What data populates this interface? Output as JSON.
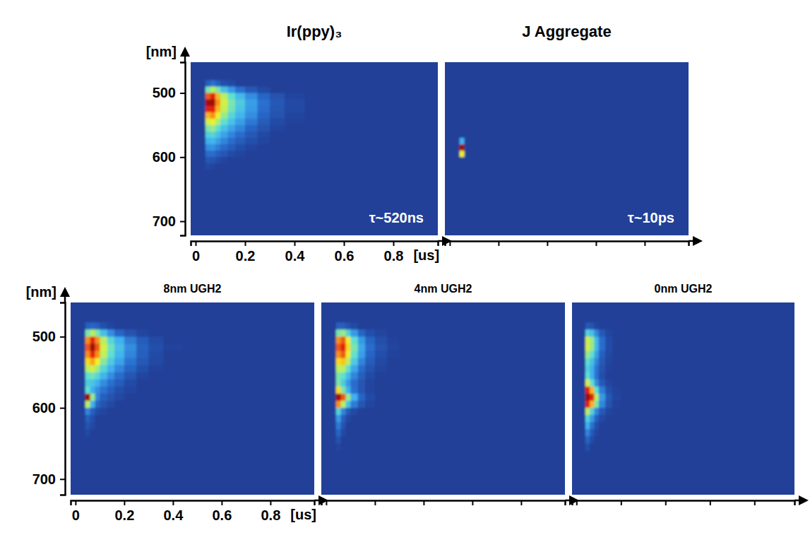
{
  "chart_data": [
    {
      "type": "heatmap",
      "title": "Ir(ppy)₃",
      "x_label": "[us]",
      "y_label": "[nm]",
      "annotations": [
        "τ~520ns"
      ],
      "xlim": [
        -0.02,
        0.98
      ],
      "ylim": [
        452,
        722
      ],
      "xticks": [
        0,
        0.2,
        0.4,
        0.6,
        0.8
      ],
      "yticks": [
        500,
        600,
        700
      ],
      "zlim": [
        0,
        1
      ],
      "x_bins": [
        0.04,
        0.06,
        0.08,
        0.1,
        0.13,
        0.16,
        0.2,
        0.25,
        0.3,
        0.36,
        0.44
      ],
      "y_bins": [
        480,
        490,
        500,
        510,
        520,
        530,
        540,
        550,
        560,
        570,
        580,
        590,
        600,
        610,
        620,
        630,
        640,
        650,
        660
      ],
      "values": [
        [
          0.1,
          0.15,
          0.1,
          0.05,
          0.03,
          0,
          0,
          0,
          0,
          0
        ],
        [
          0.5,
          0.6,
          0.5,
          0.35,
          0.25,
          0.15,
          0.08,
          0.03,
          0,
          0
        ],
        [
          0.9,
          0.95,
          0.8,
          0.6,
          0.45,
          0.33,
          0.22,
          0.12,
          0.06,
          0.02
        ],
        [
          1.0,
          1.0,
          0.85,
          0.65,
          0.5,
          0.38,
          0.26,
          0.15,
          0.08,
          0.03
        ],
        [
          0.95,
          0.95,
          0.8,
          0.62,
          0.48,
          0.36,
          0.25,
          0.14,
          0.07,
          0.03
        ],
        [
          0.8,
          0.85,
          0.7,
          0.55,
          0.42,
          0.32,
          0.22,
          0.12,
          0.06,
          0.02
        ],
        [
          0.65,
          0.7,
          0.58,
          0.45,
          0.35,
          0.26,
          0.17,
          0.09,
          0.04,
          0.01
        ],
        [
          0.5,
          0.55,
          0.45,
          0.35,
          0.27,
          0.2,
          0.12,
          0.06,
          0.02,
          0
        ],
        [
          0.4,
          0.42,
          0.35,
          0.27,
          0.2,
          0.14,
          0.08,
          0.03,
          0,
          0
        ],
        [
          0.3,
          0.32,
          0.26,
          0.2,
          0.14,
          0.09,
          0.05,
          0.02,
          0,
          0
        ],
        [
          0.22,
          0.23,
          0.18,
          0.13,
          0.09,
          0.05,
          0.02,
          0,
          0,
          0
        ],
        [
          0.14,
          0.14,
          0.1,
          0.07,
          0.04,
          0.02,
          0,
          0,
          0,
          0
        ],
        [
          0.07,
          0.06,
          0.04,
          0.02,
          0,
          0,
          0,
          0,
          0,
          0
        ],
        [
          0.03,
          0.02,
          0,
          0,
          0,
          0,
          0,
          0,
          0,
          0
        ],
        [
          0,
          0,
          0,
          0,
          0,
          0,
          0,
          0,
          0,
          0
        ],
        [
          0,
          0,
          0,
          0,
          0,
          0,
          0,
          0,
          0,
          0
        ],
        [
          0,
          0,
          0,
          0,
          0,
          0,
          0,
          0,
          0,
          0
        ],
        [
          0,
          0,
          0,
          0,
          0,
          0,
          0,
          0,
          0,
          0
        ]
      ]
    },
    {
      "type": "heatmap",
      "title": "J Aggregate",
      "annotations": [
        "τ~10ps"
      ],
      "tick_labels": false,
      "xlim": [
        -0.02,
        0.98
      ],
      "ylim": [
        452,
        722
      ],
      "xticks": [
        0,
        0.2,
        0.4,
        0.6,
        0.8
      ],
      "zlim": [
        0,
        1
      ],
      "x_bins": [
        0.04,
        0.06,
        0.08,
        0.1,
        0.13,
        0.16,
        0.2,
        0.25,
        0.3,
        0.36,
        0.44
      ],
      "y_bins": [
        480,
        490,
        500,
        510,
        520,
        530,
        540,
        550,
        560,
        570,
        580,
        590,
        600,
        610,
        620,
        630,
        640,
        650,
        660
      ],
      "values": [
        [
          0,
          0,
          0,
          0,
          0,
          0,
          0,
          0,
          0,
          0
        ],
        [
          0,
          0,
          0,
          0,
          0,
          0,
          0,
          0,
          0,
          0
        ],
        [
          0,
          0,
          0,
          0,
          0,
          0,
          0,
          0,
          0,
          0
        ],
        [
          0,
          0,
          0,
          0,
          0,
          0,
          0,
          0,
          0,
          0
        ],
        [
          0,
          0,
          0,
          0,
          0,
          0,
          0,
          0,
          0,
          0
        ],
        [
          0,
          0,
          0,
          0,
          0,
          0,
          0,
          0,
          0,
          0
        ],
        [
          0,
          0,
          0,
          0,
          0,
          0,
          0,
          0,
          0,
          0
        ],
        [
          0,
          0,
          0,
          0,
          0,
          0,
          0,
          0,
          0,
          0
        ],
        [
          0,
          0,
          0,
          0,
          0,
          0,
          0,
          0,
          0,
          0
        ],
        [
          0.3,
          0,
          0,
          0,
          0,
          0,
          0,
          0,
          0,
          0
        ],
        [
          1.0,
          0,
          0,
          0,
          0,
          0,
          0,
          0,
          0,
          0
        ],
        [
          0.7,
          0,
          0,
          0,
          0,
          0,
          0,
          0,
          0,
          0
        ],
        [
          0,
          0,
          0,
          0,
          0,
          0,
          0,
          0,
          0,
          0
        ],
        [
          0,
          0,
          0,
          0,
          0,
          0,
          0,
          0,
          0,
          0
        ],
        [
          0,
          0,
          0,
          0,
          0,
          0,
          0,
          0,
          0,
          0
        ],
        [
          0,
          0,
          0,
          0,
          0,
          0,
          0,
          0,
          0,
          0
        ],
        [
          0,
          0,
          0,
          0,
          0,
          0,
          0,
          0,
          0,
          0
        ],
        [
          0,
          0,
          0,
          0,
          0,
          0,
          0,
          0,
          0,
          0
        ]
      ]
    },
    {
      "type": "heatmap",
      "title": "8nm UGH2",
      "x_label": "[us]",
      "y_label": "[nm]",
      "xlim": [
        -0.02,
        0.98
      ],
      "ylim": [
        452,
        722
      ],
      "xticks": [
        0,
        0.2,
        0.4,
        0.6,
        0.8
      ],
      "yticks": [
        500,
        600,
        700
      ],
      "zlim": [
        0,
        1
      ],
      "x_bins": [
        0.04,
        0.06,
        0.08,
        0.1,
        0.13,
        0.16,
        0.2,
        0.25,
        0.3,
        0.36,
        0.44
      ],
      "y_bins": [
        480,
        490,
        500,
        510,
        520,
        530,
        540,
        550,
        560,
        570,
        580,
        590,
        600,
        610,
        620,
        630,
        640,
        650,
        660
      ],
      "values": [
        [
          0.1,
          0.12,
          0.1,
          0.05,
          0.02,
          0,
          0,
          0,
          0,
          0
        ],
        [
          0.5,
          0.6,
          0.5,
          0.35,
          0.22,
          0.12,
          0.06,
          0.02,
          0,
          0
        ],
        [
          0.85,
          0.95,
          0.85,
          0.6,
          0.42,
          0.3,
          0.18,
          0.09,
          0.04,
          0
        ],
        [
          0.9,
          1.0,
          0.9,
          0.65,
          0.48,
          0.34,
          0.22,
          0.11,
          0.05,
          0.01
        ],
        [
          0.85,
          0.95,
          0.85,
          0.62,
          0.45,
          0.32,
          0.2,
          0.1,
          0.04,
          0
        ],
        [
          0.75,
          0.82,
          0.72,
          0.52,
          0.38,
          0.27,
          0.16,
          0.08,
          0.03,
          0
        ],
        [
          0.6,
          0.65,
          0.56,
          0.42,
          0.3,
          0.2,
          0.12,
          0.05,
          0.01,
          0
        ],
        [
          0.45,
          0.48,
          0.42,
          0.32,
          0.22,
          0.14,
          0.07,
          0.02,
          0,
          0
        ],
        [
          0.38,
          0.36,
          0.3,
          0.22,
          0.15,
          0.09,
          0.04,
          0,
          0,
          0
        ],
        [
          0.45,
          0.3,
          0.22,
          0.16,
          0.1,
          0.05,
          0.02,
          0,
          0,
          0
        ],
        [
          1.0,
          0.55,
          0.2,
          0.1,
          0.06,
          0.03,
          0,
          0,
          0,
          0
        ],
        [
          0.6,
          0.3,
          0.12,
          0.06,
          0.03,
          0,
          0,
          0,
          0,
          0
        ],
        [
          0.2,
          0.1,
          0.04,
          0.02,
          0,
          0,
          0,
          0,
          0,
          0
        ],
        [
          0.1,
          0.05,
          0,
          0,
          0,
          0,
          0,
          0,
          0,
          0
        ],
        [
          0.06,
          0.03,
          0,
          0,
          0,
          0,
          0,
          0,
          0,
          0
        ],
        [
          0.03,
          0,
          0,
          0,
          0,
          0,
          0,
          0,
          0,
          0
        ],
        [
          0,
          0,
          0,
          0,
          0,
          0,
          0,
          0,
          0,
          0
        ],
        [
          0,
          0,
          0,
          0,
          0,
          0,
          0,
          0,
          0,
          0
        ]
      ]
    },
    {
      "type": "heatmap",
      "title": "4nm UGH2",
      "tick_labels": false,
      "xlim": [
        -0.02,
        0.98
      ],
      "ylim": [
        452,
        722
      ],
      "xticks": [
        0,
        0.2,
        0.4,
        0.6,
        0.8
      ],
      "zlim": [
        0,
        1
      ],
      "x_bins": [
        0.04,
        0.06,
        0.08,
        0.1,
        0.13,
        0.16,
        0.2,
        0.25,
        0.3,
        0.36,
        0.44
      ],
      "y_bins": [
        480,
        490,
        500,
        510,
        520,
        530,
        540,
        550,
        560,
        570,
        580,
        590,
        600,
        610,
        620,
        630,
        640,
        650,
        660
      ],
      "values": [
        [
          0.1,
          0.1,
          0.06,
          0.03,
          0,
          0,
          0,
          0,
          0,
          0
        ],
        [
          0.5,
          0.55,
          0.4,
          0.25,
          0.12,
          0.05,
          0.02,
          0,
          0,
          0
        ],
        [
          0.85,
          0.9,
          0.7,
          0.45,
          0.25,
          0.12,
          0.05,
          0.01,
          0,
          0
        ],
        [
          0.9,
          0.95,
          0.75,
          0.5,
          0.28,
          0.14,
          0.06,
          0.02,
          0,
          0
        ],
        [
          0.85,
          0.9,
          0.7,
          0.46,
          0.26,
          0.12,
          0.05,
          0.01,
          0,
          0
        ],
        [
          0.75,
          0.78,
          0.6,
          0.38,
          0.2,
          0.09,
          0.03,
          0,
          0,
          0
        ],
        [
          0.6,
          0.6,
          0.45,
          0.28,
          0.14,
          0.06,
          0.02,
          0,
          0,
          0
        ],
        [
          0.5,
          0.45,
          0.33,
          0.2,
          0.1,
          0.04,
          0,
          0,
          0,
          0
        ],
        [
          0.5,
          0.38,
          0.25,
          0.14,
          0.07,
          0.02,
          0,
          0,
          0,
          0
        ],
        [
          0.75,
          0.5,
          0.3,
          0.15,
          0.07,
          0.02,
          0,
          0,
          0,
          0
        ],
        [
          1.0,
          0.9,
          0.55,
          0.3,
          0.12,
          0.04,
          0,
          0,
          0,
          0
        ],
        [
          0.85,
          0.6,
          0.35,
          0.18,
          0.07,
          0.02,
          0,
          0,
          0,
          0
        ],
        [
          0.4,
          0.2,
          0.08,
          0.03,
          0,
          0,
          0,
          0,
          0,
          0
        ],
        [
          0.25,
          0.1,
          0.03,
          0,
          0,
          0,
          0,
          0,
          0,
          0
        ],
        [
          0.18,
          0.06,
          0,
          0,
          0,
          0,
          0,
          0,
          0,
          0
        ],
        [
          0.12,
          0.03,
          0,
          0,
          0,
          0,
          0,
          0,
          0,
          0
        ],
        [
          0.06,
          0,
          0,
          0,
          0,
          0,
          0,
          0,
          0,
          0
        ],
        [
          0.02,
          0,
          0,
          0,
          0,
          0,
          0,
          0,
          0,
          0
        ]
      ]
    },
    {
      "type": "heatmap",
      "title": "0nm UGH2",
      "tick_labels": false,
      "xlim": [
        -0.02,
        0.98
      ],
      "ylim": [
        452,
        722
      ],
      "xticks": [
        0,
        0.2,
        0.4,
        0.6,
        0.8
      ],
      "zlim": [
        0,
        1
      ],
      "x_bins": [
        0.04,
        0.06,
        0.08,
        0.1,
        0.13,
        0.16,
        0.2,
        0.25,
        0.3,
        0.36,
        0.44
      ],
      "y_bins": [
        480,
        490,
        500,
        510,
        520,
        530,
        540,
        550,
        560,
        570,
        580,
        590,
        600,
        610,
        620,
        630,
        640,
        650,
        660
      ],
      "values": [
        [
          0.08,
          0.06,
          0.02,
          0,
          0,
          0,
          0,
          0,
          0,
          0
        ],
        [
          0.4,
          0.35,
          0.2,
          0.08,
          0.02,
          0,
          0,
          0,
          0,
          0
        ],
        [
          0.65,
          0.55,
          0.32,
          0.14,
          0.04,
          0,
          0,
          0,
          0,
          0
        ],
        [
          0.65,
          0.55,
          0.32,
          0.14,
          0.04,
          0,
          0,
          0,
          0,
          0
        ],
        [
          0.55,
          0.45,
          0.26,
          0.1,
          0.03,
          0,
          0,
          0,
          0,
          0
        ],
        [
          0.45,
          0.35,
          0.2,
          0.08,
          0.02,
          0,
          0,
          0,
          0,
          0
        ],
        [
          0.4,
          0.3,
          0.16,
          0.06,
          0.01,
          0,
          0,
          0,
          0,
          0
        ],
        [
          0.45,
          0.3,
          0.15,
          0.05,
          0,
          0,
          0,
          0,
          0,
          0
        ],
        [
          0.65,
          0.45,
          0.22,
          0.08,
          0.02,
          0,
          0,
          0,
          0,
          0
        ],
        [
          0.95,
          0.8,
          0.45,
          0.18,
          0.05,
          0.01,
          0,
          0,
          0,
          0
        ],
        [
          1.0,
          0.95,
          0.6,
          0.25,
          0.08,
          0.02,
          0,
          0,
          0,
          0
        ],
        [
          0.95,
          0.8,
          0.5,
          0.2,
          0.06,
          0.01,
          0,
          0,
          0,
          0
        ],
        [
          0.6,
          0.4,
          0.2,
          0.08,
          0.02,
          0,
          0,
          0,
          0,
          0
        ],
        [
          0.4,
          0.25,
          0.1,
          0.03,
          0,
          0,
          0,
          0,
          0,
          0
        ],
        [
          0.3,
          0.15,
          0.05,
          0,
          0,
          0,
          0,
          0,
          0,
          0
        ],
        [
          0.2,
          0.08,
          0.02,
          0,
          0,
          0,
          0,
          0,
          0,
          0
        ],
        [
          0.12,
          0.04,
          0,
          0,
          0,
          0,
          0,
          0,
          0,
          0
        ],
        [
          0.05,
          0,
          0,
          0,
          0,
          0,
          0,
          0,
          0,
          0
        ]
      ]
    }
  ]
}
